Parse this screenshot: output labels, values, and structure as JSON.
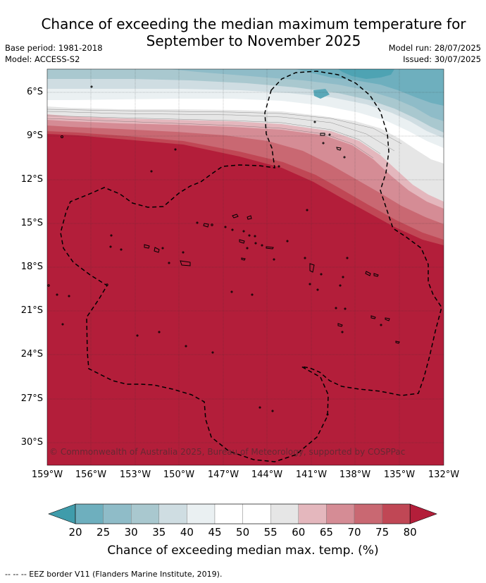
{
  "title_line1": "Chance of exceeding the median maximum temperature for",
  "title_line2": "September to November 2025",
  "base_period": "Base period: 1981-2018",
  "model": "Model: ACCESS-S2",
  "model_run": "Model run: 28/07/2025",
  "issued": "Issued: 30/07/2025",
  "credit": "© Commonwealth of Australia 2025, Bureau of Meteorology, supported by COSPPac",
  "lat_labels": [
    "6°S",
    "9°S",
    "12°S",
    "15°S",
    "18°S",
    "21°S",
    "24°S",
    "27°S",
    "30°S"
  ],
  "lon_labels": [
    "159°W",
    "156°W",
    "153°W",
    "150°W",
    "147°W",
    "144°W",
    "141°W",
    "138°W",
    "135°W",
    "132°W"
  ],
  "colorbar": {
    "ticks": [
      "20",
      "25",
      "30",
      "35",
      "40",
      "45",
      "50",
      "55",
      "60",
      "65",
      "70",
      "75",
      "80"
    ],
    "colors": [
      "#3f9cab",
      "#6eafbe",
      "#8fbcc8",
      "#a9c8cf",
      "#cfdde2",
      "#eaf0f2",
      "#ffffff",
      "#ffffff",
      "#e6e6e6",
      "#e4b7bd",
      "#d58c95",
      "#c96872",
      "#c04755",
      "#b31e3a"
    ],
    "title": "Chance of exceeding median max. temp. (%)"
  },
  "footnote": "--  --  -- EEZ border V11 (Flanders Marine Institute, 2019)."
}
